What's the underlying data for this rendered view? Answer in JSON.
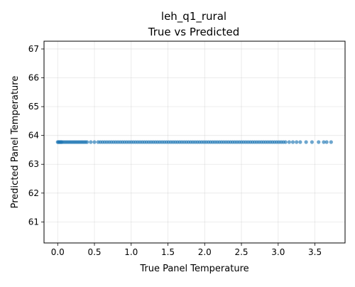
{
  "chart_data": {
    "type": "scatter",
    "title": "leh_q1_rural",
    "subtitle": "True vs Predicted",
    "xlabel": "True Panel Temperature",
    "ylabel": "Predicted Panel Temperature",
    "xlim": [
      -0.186,
      3.91
    ],
    "ylim": [
      60.27,
      67.27
    ],
    "x_ticks": [
      "0.0",
      "0.5",
      "1.0",
      "1.5",
      "2.0",
      "2.5",
      "3.0",
      "3.5"
    ],
    "y_ticks": [
      "61",
      "62",
      "63",
      "64",
      "65",
      "66",
      "67"
    ],
    "grid": true,
    "point_color": "#1f77b4",
    "series": [
      {
        "predicted_value": 63.77,
        "x": [
          0.0,
          0.01,
          0.02,
          0.03,
          0.04,
          0.05,
          0.06,
          0.08,
          0.1,
          0.12,
          0.14,
          0.16,
          0.18,
          0.2,
          0.22,
          0.24,
          0.26,
          0.28,
          0.3,
          0.32,
          0.34,
          0.36,
          0.38,
          0.4,
          0.45,
          0.5,
          0.55,
          0.58,
          0.61,
          0.64,
          0.67,
          0.7,
          0.73,
          0.76,
          0.79,
          0.82,
          0.85,
          0.88,
          0.91,
          0.94,
          0.97,
          1.0,
          1.03,
          1.06,
          1.09,
          1.12,
          1.15,
          1.18,
          1.21,
          1.24,
          1.27,
          1.3,
          1.33,
          1.36,
          1.39,
          1.42,
          1.45,
          1.48,
          1.51,
          1.54,
          1.57,
          1.6,
          1.63,
          1.66,
          1.69,
          1.72,
          1.75,
          1.78,
          1.81,
          1.84,
          1.87,
          1.9,
          1.93,
          1.96,
          1.99,
          2.02,
          2.05,
          2.08,
          2.11,
          2.14,
          2.17,
          2.2,
          2.23,
          2.26,
          2.29,
          2.32,
          2.35,
          2.38,
          2.41,
          2.44,
          2.47,
          2.5,
          2.53,
          2.56,
          2.59,
          2.62,
          2.65,
          2.68,
          2.71,
          2.74,
          2.77,
          2.8,
          2.83,
          2.86,
          2.89,
          2.92,
          2.95,
          2.98,
          3.01,
          3.04,
          3.07,
          3.1,
          3.15,
          3.2,
          3.25,
          3.3,
          3.38,
          3.46,
          3.55,
          3.62,
          3.66,
          3.72
        ]
      }
    ]
  }
}
